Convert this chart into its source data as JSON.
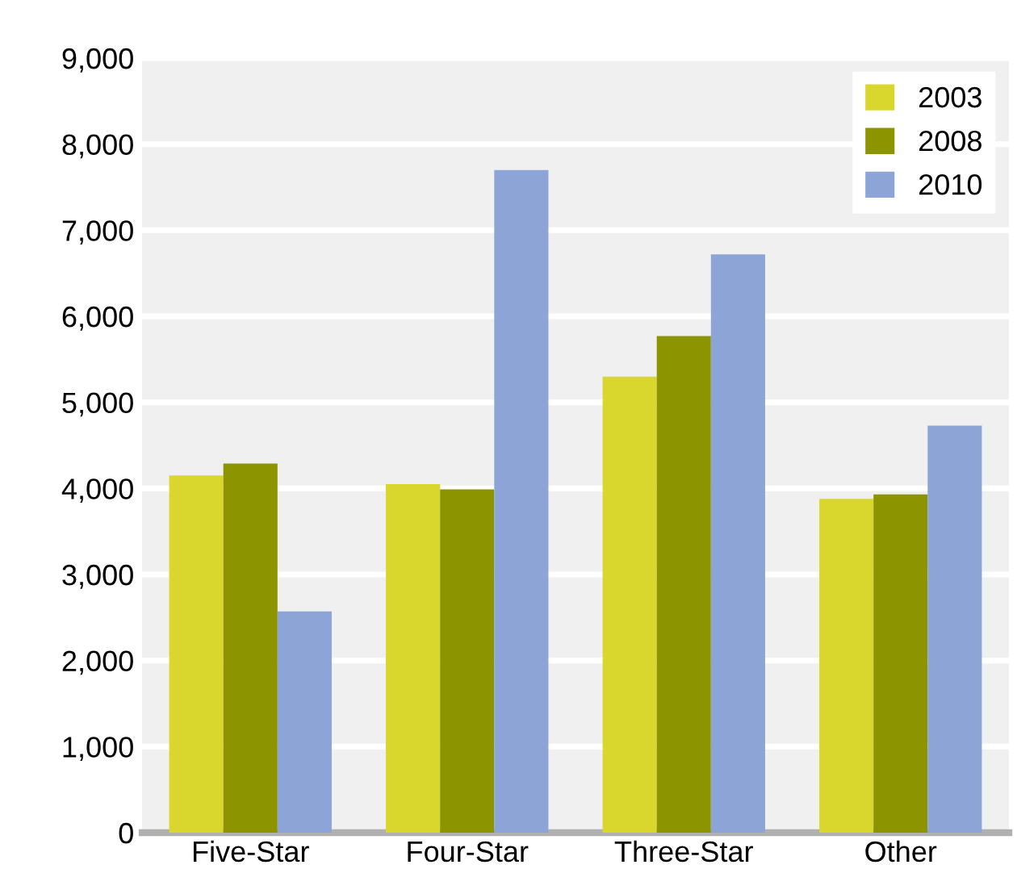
{
  "chart_data": {
    "type": "bar",
    "categories": [
      "Five-Star",
      "Four-Star",
      "Three-Star",
      "Other"
    ],
    "series": [
      {
        "name": "2003",
        "color": "#d9d72e",
        "values": [
          4150,
          4050,
          5300,
          3880
        ]
      },
      {
        "name": "2008",
        "color": "#8c9400",
        "values": [
          4290,
          3990,
          5770,
          3930
        ]
      },
      {
        "name": "2010",
        "color": "#8ca5d6",
        "values": [
          2570,
          7700,
          6720,
          4730
        ]
      }
    ],
    "ylim": [
      0,
      9000
    ],
    "yticks": [
      {
        "value": 0,
        "label": "0"
      },
      {
        "value": 1000,
        "label": "1,000"
      },
      {
        "value": 2000,
        "label": "2,000"
      },
      {
        "value": 3000,
        "label": "3,000"
      },
      {
        "value": 4000,
        "label": "4,000"
      },
      {
        "value": 5000,
        "label": "5,000"
      },
      {
        "value": 6000,
        "label": "6,000"
      },
      {
        "value": 7000,
        "label": "7,000"
      },
      {
        "value": 8000,
        "label": "8,000"
      },
      {
        "value": 9000,
        "label": "9,000"
      }
    ],
    "grid": "y",
    "legend": "top right"
  }
}
